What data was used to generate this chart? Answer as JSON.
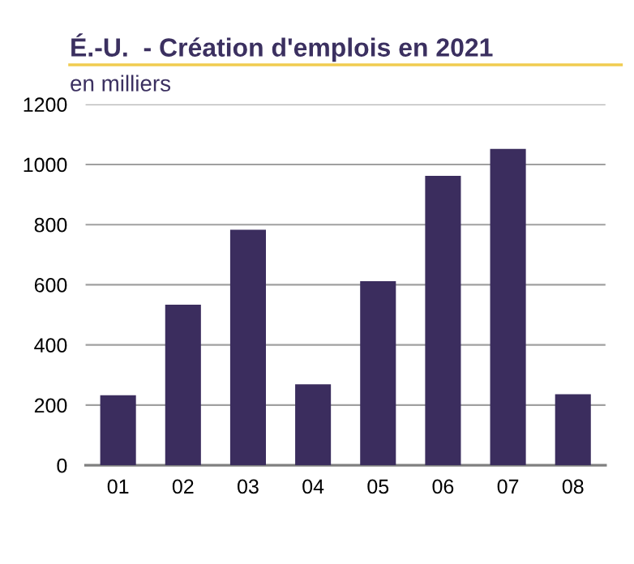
{
  "chart_data": {
    "type": "bar",
    "title": "É.-U.  - Création d'emplois en 2021",
    "ylabel": "en milliers",
    "categories": [
      "01",
      "02",
      "03",
      "04",
      "05",
      "06",
      "07",
      "08"
    ],
    "values": [
      233,
      534,
      783,
      269,
      612,
      962,
      1052,
      236
    ],
    "color": "#3b2d5e",
    "ylim": [
      0,
      1200
    ],
    "yticks": [
      0,
      200,
      400,
      600,
      800,
      1000,
      1200
    ],
    "grid": "y"
  }
}
